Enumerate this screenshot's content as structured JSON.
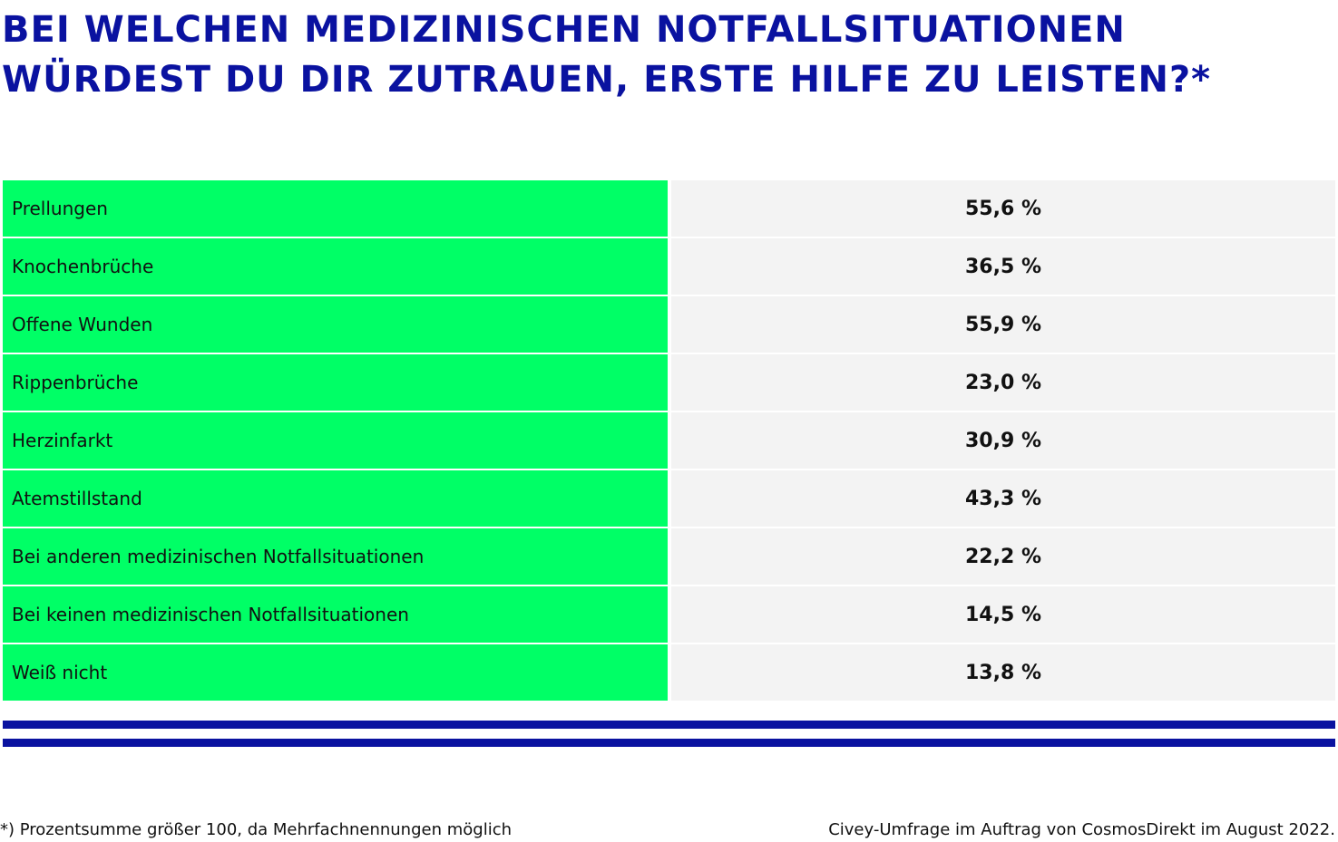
{
  "colors": {
    "title": "#0a12a0",
    "label_bg": "#00ff66",
    "value_bg": "#f3f3f3",
    "rule": "#0a12a0"
  },
  "chart_data": {
    "type": "table",
    "title_lines": [
      "BEI WELCHEN MEDIZINISCHEN NOTFALLSITUATIONEN",
      "WÜRDEST DU DIR ZUTRAUEN, ERSTE HILFE ZU LEISTEN?*"
    ],
    "rows": [
      {
        "label": "Prellungen",
        "value": 55.6,
        "display": "55,6 %"
      },
      {
        "label": "Knochenbrüche",
        "value": 36.5,
        "display": "36,5 %"
      },
      {
        "label": "Offene Wunden",
        "value": 55.9,
        "display": "55,9 %"
      },
      {
        "label": "Rippenbrüche",
        "value": 23.0,
        "display": "23,0 %"
      },
      {
        "label": "Herzinfarkt",
        "value": 30.9,
        "display": "30,9 %"
      },
      {
        "label": "Atemstillstand",
        "value": 43.3,
        "display": "43,3 %"
      },
      {
        "label": "Bei anderen medizinischen Notfallsituationen",
        "value": 22.2,
        "display": "22,2 %"
      },
      {
        "label": "Bei keinen medizinischen Notfallsituationen",
        "value": 14.5,
        "display": "14,5 %"
      },
      {
        "label": "Weiß nicht",
        "value": 13.8,
        "display": "13,8 %"
      }
    ],
    "unit": "%"
  },
  "footer": {
    "footnote": "*) Prozentsumme größer 100, da Mehrfachnennungen möglich",
    "source": "Civey-Umfrage im Auftrag von CosmosDirekt im August 2022."
  }
}
